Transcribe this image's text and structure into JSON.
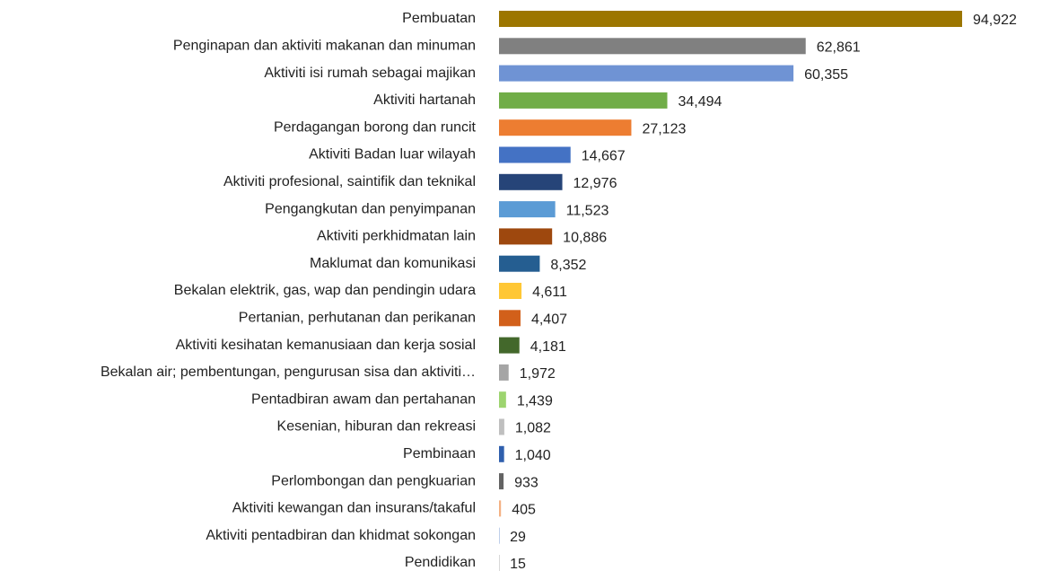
{
  "chart_data": {
    "type": "bar",
    "orientation": "horizontal",
    "categories": [
      "Pembuatan",
      "Penginapan dan aktiviti makanan dan minuman",
      "Aktiviti isi rumah sebagai majikan",
      "Aktiviti hartanah",
      "Perdagangan borong dan runcit",
      "Aktiviti Badan luar wilayah",
      "Aktiviti profesional, saintifik dan teknikal",
      "Pengangkutan dan penyimpanan",
      "Aktiviti perkhidmatan lain",
      "Maklumat dan komunikasi",
      "Bekalan elektrik, gas, wap dan pendingin udara",
      "Pertanian, perhutanan dan perikanan",
      "Aktiviti kesihatan kemanusiaan dan kerja sosial",
      "Bekalan air; pembentungan, pengurusan sisa dan aktiviti…",
      "Pentadbiran awam dan pertahanan",
      "Kesenian, hiburan dan rekreasi",
      "Pembinaan",
      "Perlombongan dan pengkuarian",
      "Aktiviti kewangan dan insurans/takaful",
      "Aktiviti pentadbiran dan khidmat sokongan",
      "Pendidikan"
    ],
    "values": [
      94922,
      62861,
      60355,
      34494,
      27123,
      14667,
      12976,
      11523,
      10886,
      8352,
      4611,
      4407,
      4181,
      1972,
      1439,
      1082,
      1040,
      933,
      405,
      29,
      15
    ],
    "value_labels": [
      "94,922",
      "62,861",
      "60,355",
      "34,494",
      "27,123",
      "14,667",
      "12,976",
      "11,523",
      "10,886",
      "8,352",
      "4,611",
      "4,407",
      "4,181",
      "1,972",
      "1,439",
      "1,082",
      "1,040",
      "933",
      "405",
      "29",
      "15"
    ],
    "colors": [
      "#9c7600",
      "#808080",
      "#6f93d4",
      "#70ad47",
      "#ed7d31",
      "#4472c4",
      "#264478",
      "#5b9bd5",
      "#9e480e",
      "#255e91",
      "#ffc735",
      "#d2601a",
      "#43682b",
      "#a5a5a5",
      "#9dd46f",
      "#bfbfbf",
      "#2f5fad",
      "#636363",
      "#f4b183",
      "#7f9fd4",
      "#b0b0b0"
    ]
  }
}
